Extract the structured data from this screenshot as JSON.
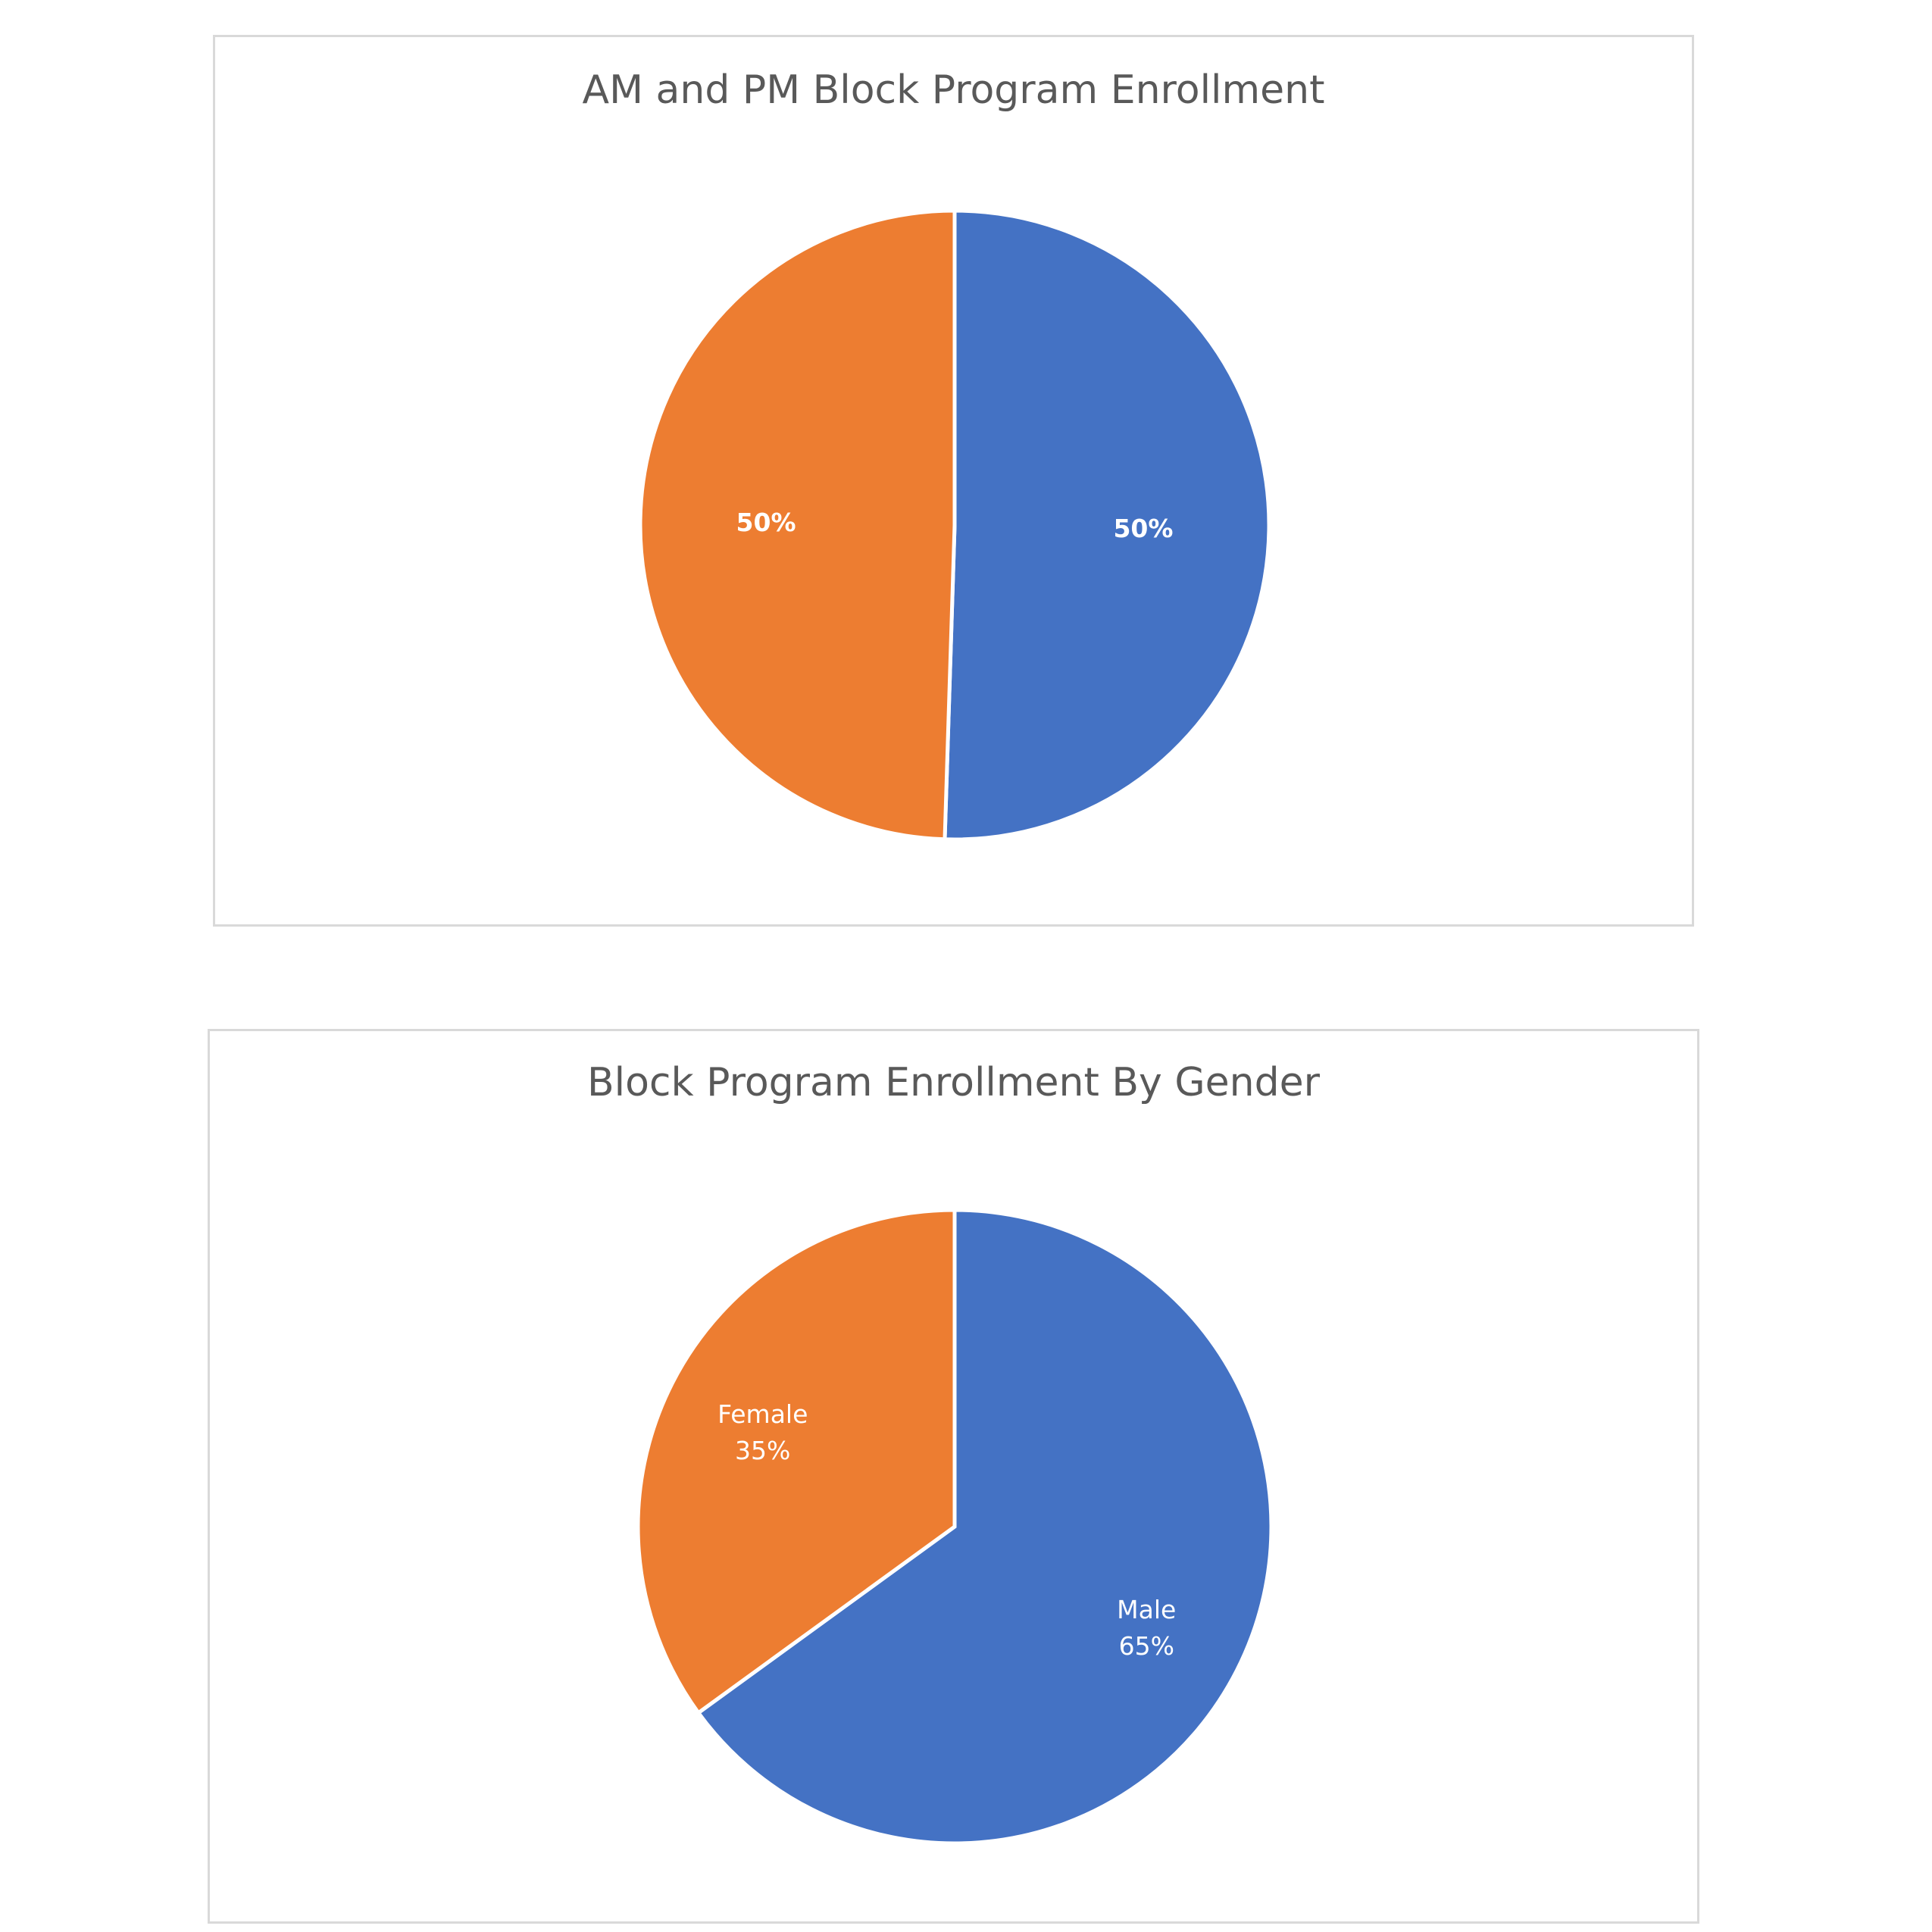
{
  "chart_data": [
    {
      "type": "pie",
      "title": "AM and PM Block Program Enrollment",
      "categories": [
        "",
        ""
      ],
      "values": [
        50.5,
        49.5
      ],
      "labels": [
        "50%",
        "50%"
      ],
      "colors": [
        "#4472C4",
        "#ED7D31"
      ],
      "legend": "none"
    },
    {
      "type": "pie",
      "title": "Block Program Enrollment By Gender",
      "categories": [
        "Male",
        "Female"
      ],
      "values": [
        65,
        35
      ],
      "labels": [
        "65%",
        "35%"
      ],
      "colors": [
        "#4472C4",
        "#ED7D31"
      ],
      "legend": "none"
    }
  ]
}
